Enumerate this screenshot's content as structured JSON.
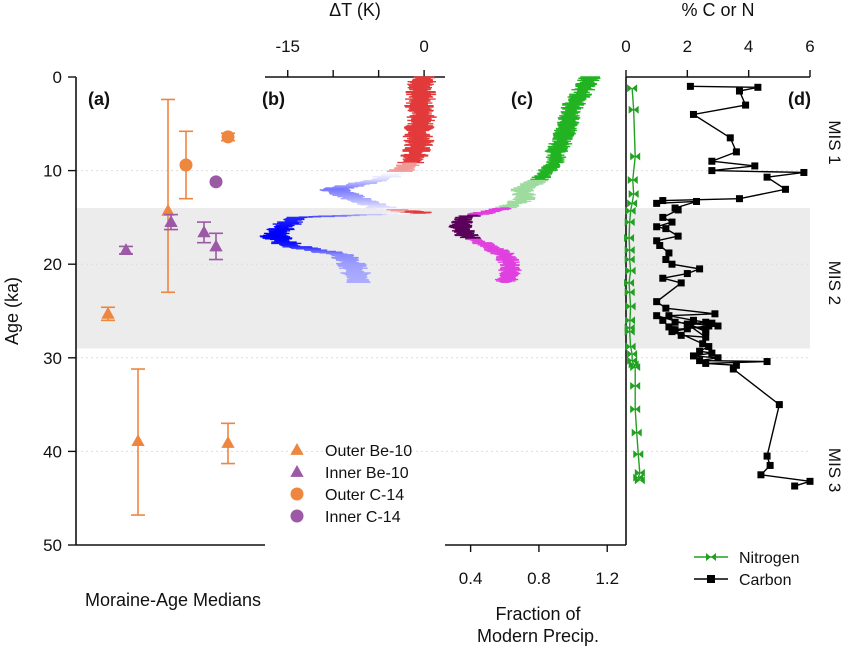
{
  "chart_data": [
    {
      "panel": "(a)",
      "type": "scatter",
      "xlabel": "Moraine-Age Medians",
      "ylabel": "Age (ka)",
      "ylim": [
        0,
        50
      ],
      "yticks": [
        0,
        10,
        20,
        30,
        40,
        50
      ],
      "shaded_band_ka": [
        14,
        29
      ],
      "series": [
        {
          "name": "Outer Be-10",
          "marker": "triangle",
          "color": "#ee8640",
          "points": [
            {
              "i": 0,
              "y": 25.3,
              "lo": 24.6,
              "hi": 26.0
            },
            {
              "i": 2,
              "y": 14.3,
              "lo": 2.4,
              "hi": 23.0
            },
            {
              "i": 1,
              "y": 38.9,
              "lo": 31.2,
              "hi": 46.8
            },
            {
              "i": 4,
              "y": 39.1,
              "lo": 37.0,
              "hi": 41.3
            }
          ]
        },
        {
          "name": "Inner Be-10",
          "marker": "triangle",
          "color": "#9b59a6",
          "points": [
            {
              "i": 0.6,
              "y": 18.5,
              "lo": 18.1,
              "hi": 18.9
            },
            {
              "i": 2.1,
              "y": 15.5,
              "lo": 14.7,
              "hi": 16.3
            },
            {
              "i": 3.2,
              "y": 16.6,
              "lo": 15.5,
              "hi": 17.7
            },
            {
              "i": 3.6,
              "y": 18.1,
              "lo": 16.7,
              "hi": 19.5
            }
          ]
        },
        {
          "name": "Outer C-14",
          "marker": "circle",
          "color": "#ee8640",
          "points": [
            {
              "i": 2.6,
              "y": 9.4,
              "lo": 5.8,
              "hi": 13.0
            },
            {
              "i": 4,
              "y": 6.4,
              "lo": 6.0,
              "hi": 6.8
            }
          ]
        },
        {
          "name": "Inner C-14",
          "marker": "circle",
          "color": "#9b59a6",
          "points": [
            {
              "i": 3.6,
              "y": 11.2,
              "lo": 11.2,
              "hi": 11.2
            }
          ]
        }
      ]
    },
    {
      "panel": "(b)",
      "type": "line",
      "xlabel": "ΔT (K)",
      "xticks": [
        -15,
        -10,
        -5,
        0
      ],
      "xticklabels": [
        "-15",
        "",
        "",
        "0"
      ],
      "xlim": [
        -17.5,
        2.3
      ],
      "y_ka": [
        0,
        1,
        2,
        3,
        4,
        5,
        6,
        7,
        8,
        9,
        10,
        11,
        12,
        13,
        14,
        14.5,
        15,
        16,
        17,
        18,
        19,
        20,
        21,
        22
      ],
      "x_K": [
        0,
        -0.5,
        -0.3,
        -0.6,
        -0.2,
        -0.4,
        -0.8,
        -0.5,
        -0.9,
        -1.3,
        -2.5,
        -5.0,
        -10.0,
        -7.5,
        -4.5,
        -0.2,
        -14.0,
        -15.5,
        -16.5,
        -14.8,
        -9.0,
        -8.0,
        -7.5,
        -7.2
      ],
      "colorscale": [
        "#1a1ad6",
        "#ffffff",
        "#e62626"
      ]
    },
    {
      "panel": "(c)",
      "type": "line",
      "xlabel": "Fraction of Modern Precip.",
      "xticks": [
        0.4,
        0.8,
        1.2
      ],
      "xticklabels": [
        "0.4",
        "0.8",
        "1.2"
      ],
      "xlim": [
        0.25,
        1.31
      ],
      "y_ka": [
        0,
        1,
        2,
        3,
        4,
        5,
        6,
        7,
        8,
        9,
        10,
        11,
        12,
        13,
        14,
        15,
        16,
        17,
        18,
        19,
        20,
        21,
        22
      ],
      "x_frac": [
        1.1,
        1.07,
        1.04,
        1.0,
        0.98,
        0.97,
        0.95,
        0.93,
        0.9,
        0.9,
        0.85,
        0.8,
        0.7,
        0.72,
        0.6,
        0.36,
        0.34,
        0.38,
        0.5,
        0.6,
        0.63,
        0.63,
        0.6
      ],
      "colors": {
        "wet": "#22b322",
        "dry": "#e040e0",
        "driest": "#5a005a"
      }
    },
    {
      "panel": "(d)",
      "type": "line",
      "xlabel": "% C or N",
      "xticks": [
        0,
        2,
        4,
        6
      ],
      "xticklabels": [
        "0",
        "2",
        "4",
        "6"
      ],
      "xlim": [
        0,
        6
      ],
      "series": [
        {
          "name": "Nitrogen",
          "color": "#22a022",
          "marker": "bowtie",
          "x": [
            0.2,
            0.25,
            0.3,
            0.22,
            0.25,
            0.2,
            0.15,
            0.12,
            0.1,
            0.12,
            0.12,
            0.15,
            0.1,
            0.12,
            0.15,
            0.13,
            0.12,
            0.12,
            0.15,
            0.2,
            0.2,
            0.25,
            0.3,
            0.3,
            0.3,
            0.35,
            0.4,
            0.45,
            0.4,
            0.45
          ],
          "y": [
            1.2,
            3.5,
            8.5,
            11,
            12.5,
            13.5,
            14.3,
            15.5,
            17.2,
            18.5,
            19.5,
            20.7,
            22,
            23,
            24.5,
            26,
            26.8,
            27.2,
            28.8,
            29.6,
            30.3,
            30.7,
            31,
            33,
            35.5,
            38,
            40.3,
            42.3,
            42.8,
            43.1
          ]
        },
        {
          "name": "Carbon",
          "color": "#000000",
          "marker": "square",
          "x": [
            2.1,
            4.3,
            3.7,
            3.9,
            2.2,
            3.4,
            3.6,
            2.8,
            4.2,
            2.8,
            5.8,
            4.6,
            5.2,
            3.7,
            1.2,
            1.0,
            2.3,
            1.6,
            1.7,
            1.2,
            1.5,
            1.0,
            1.3,
            1.7,
            1.0,
            1.1,
            1.4,
            1.3,
            1.5,
            2.4,
            2.0,
            1.2,
            1.8,
            1.0,
            1.3,
            2.9,
            1.4,
            2.2,
            2.8,
            2.7,
            1.6,
            2.0,
            1.5,
            1.8,
            2.6,
            2.0,
            2.6,
            2.1,
            2.6,
            2.6,
            1.0,
            1.2,
            1.4,
            1.6,
            3.0,
            1.5,
            2.5,
            2.7,
            2.4,
            2.8,
            2.2,
            3.0,
            2.4,
            4.6,
            2.6,
            3.6,
            3.5,
            5.0,
            4.6,
            4.7,
            4.4,
            6.0,
            5.5
          ],
          "y": [
            1.0,
            1.1,
            1.5,
            3.0,
            4.0,
            6.5,
            8.0,
            9.0,
            9.5,
            10.0,
            10.2,
            10.7,
            12.0,
            13.0,
            13.2,
            13.5,
            13.3,
            14.0,
            14.2,
            15.0,
            15.5,
            16.0,
            16.2,
            17.0,
            17.5,
            18.0,
            18.8,
            19.5,
            20.0,
            20.5,
            21.0,
            21.5,
            22.0,
            24.0,
            24.7,
            25.3,
            25.5,
            26.0,
            26.3,
            26.6,
            27.0,
            26.9,
            27.2,
            27.6,
            27.8,
            26.4,
            26.2,
            26.5,
            27.2,
            27.0,
            25.5,
            26.0,
            26.7,
            26.2,
            26.6,
            27.0,
            28.5,
            28.8,
            29.3,
            29.5,
            29.8,
            30.0,
            30.3,
            30.4,
            30.6,
            30.8,
            31.2,
            35.0,
            40.5,
            41.5,
            42.5,
            43.2,
            43.7
          ]
        }
      ]
    }
  ],
  "mis_labels": [
    {
      "label": "MIS 1",
      "y": 7
    },
    {
      "label": "MIS 2",
      "y": 22
    },
    {
      "label": "MIS 3",
      "y": 42
    }
  ],
  "legend_a": [
    "Outer Be-10",
    "Inner Be-10",
    "Outer C-14",
    "Inner C-14"
  ],
  "legend_d": [
    "Nitrogen",
    "Carbon"
  ]
}
